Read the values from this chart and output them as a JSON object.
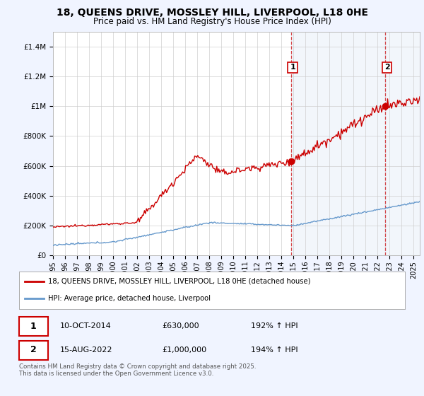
{
  "title": "18, QUEENS DRIVE, MOSSLEY HILL, LIVERPOOL, L18 0HE",
  "subtitle": "Price paid vs. HM Land Registry's House Price Index (HPI)",
  "background_color": "#f0f4ff",
  "plot_bg_color": "#ffffff",
  "red_line_color": "#cc0000",
  "blue_line_color": "#6699cc",
  "vline_color": "#cc0000",
  "shaded_region_color": "#dce8f5",
  "event1_year": 2014.78,
  "event2_year": 2022.62,
  "event1_price": 630000,
  "event2_price": 1000000,
  "event1_date": "10-OCT-2014",
  "event2_date": "15-AUG-2022",
  "event1_hpi": "192% ↑ HPI",
  "event2_hpi": "194% ↑ HPI",
  "legend_line1": "18, QUEENS DRIVE, MOSSLEY HILL, LIVERPOOL, L18 0HE (detached house)",
  "legend_line2": "HPI: Average price, detached house, Liverpool",
  "footer": "Contains HM Land Registry data © Crown copyright and database right 2025.\nThis data is licensed under the Open Government Licence v3.0.",
  "yticks": [
    0,
    200000,
    400000,
    600000,
    800000,
    1000000,
    1200000,
    1400000
  ],
  "ytick_labels": [
    "£0",
    "£200K",
    "£400K",
    "£600K",
    "£800K",
    "£1M",
    "£1.2M",
    "£1.4M"
  ],
  "ylim_max": 1500000,
  "xlim_min": 1995,
  "xlim_max": 2025.5
}
